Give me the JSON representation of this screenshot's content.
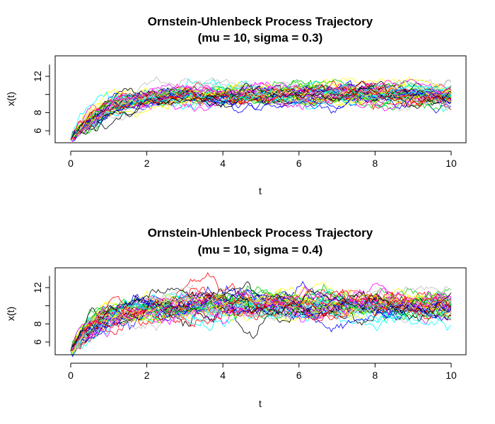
{
  "chart_data": [
    {
      "type": "line",
      "title": "Ornstein-Uhlenbeck Process Trajectory",
      "subtitle": "(mu = 10, sigma = 0.3)",
      "xlabel": "t",
      "ylabel": "x(t)",
      "xlim": [
        0,
        10
      ],
      "ylim": [
        5,
        14
      ],
      "xticks": [
        0,
        2,
        4,
        6,
        8,
        10
      ],
      "yticks": [
        6,
        8,
        12
      ],
      "grid": false,
      "legend": "none",
      "num_trajectories": 50,
      "params": {
        "mu": 10,
        "sigma": 0.3,
        "x0": 5
      },
      "series_mean": {
        "x": [
          0,
          0.5,
          1,
          1.5,
          2,
          3,
          4,
          5,
          6,
          7,
          8,
          9,
          10
        ],
        "y": [
          5.0,
          7.0,
          8.2,
          8.8,
          9.2,
          9.5,
          9.7,
          9.8,
          9.9,
          9.9,
          9.9,
          10.0,
          10.0
        ]
      },
      "y_range_observed": [
        5.0,
        13.0
      ]
    },
    {
      "type": "line",
      "title": "Ornstein-Uhlenbeck Process Trajectory",
      "subtitle": "(mu = 10, sigma = 0.4)",
      "xlabel": "t",
      "ylabel": "x(t)",
      "xlim": [
        0,
        10
      ],
      "ylim": [
        5,
        14
      ],
      "xticks": [
        0,
        2,
        4,
        6,
        8,
        10
      ],
      "yticks": [
        6,
        8,
        12
      ],
      "grid": false,
      "legend": "none",
      "num_trajectories": 50,
      "params": {
        "mu": 10,
        "sigma": 0.4,
        "x0": 5
      },
      "series_mean": {
        "x": [
          0,
          0.5,
          1,
          1.5,
          2,
          3,
          4,
          5,
          6,
          7,
          8,
          9,
          10
        ],
        "y": [
          5.0,
          7.2,
          8.4,
          9.0,
          9.3,
          9.6,
          9.8,
          9.9,
          9.9,
          10.0,
          10.0,
          10.0,
          10.0
        ]
      },
      "y_range_observed": [
        5.0,
        13.8
      ]
    }
  ],
  "colors": {
    "palette": [
      "#000000",
      "#ff0000",
      "#00cd00",
      "#0000ff",
      "#00ffff",
      "#ff00ff",
      "#ffff00",
      "#bebebe"
    ]
  }
}
